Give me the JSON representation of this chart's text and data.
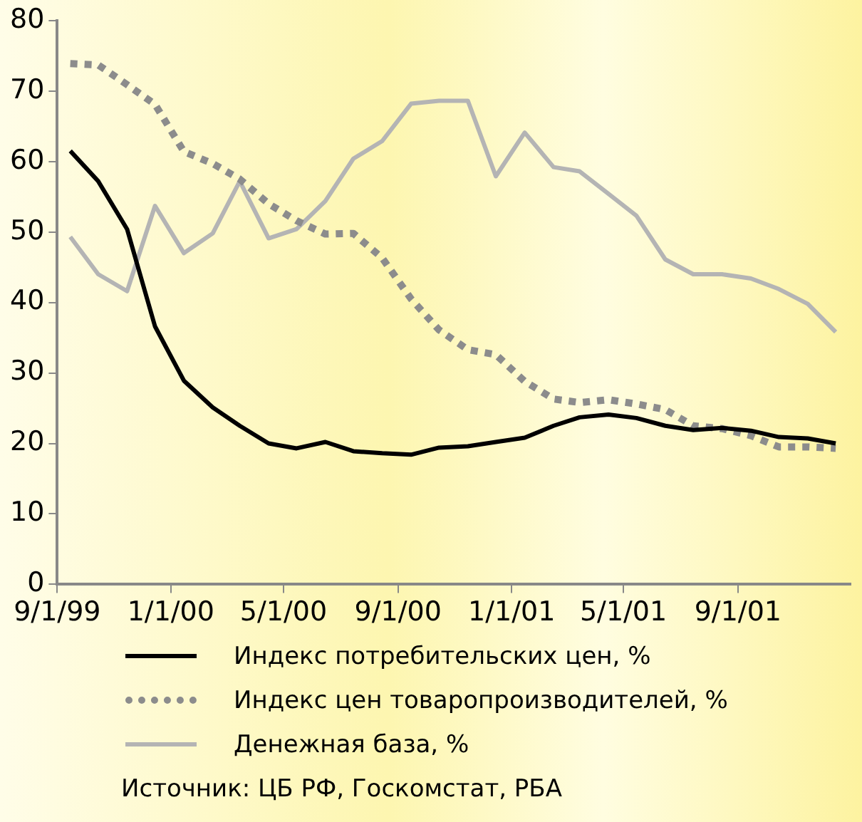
{
  "chart_data": {
    "type": "line",
    "x": [
      "1999-09-15",
      "1999-10-15",
      "1999-11-15",
      "1999-12-15",
      "2000-01-15",
      "2000-02-15",
      "2000-03-15",
      "2000-04-15",
      "2000-05-15",
      "2000-06-15",
      "2000-07-15",
      "2000-08-15",
      "2000-09-15",
      "2000-10-15",
      "2000-11-15",
      "2000-12-15",
      "2001-01-15",
      "2001-02-15",
      "2001-03-15",
      "2001-04-15",
      "2001-05-15",
      "2001-06-15",
      "2001-07-15",
      "2001-08-15",
      "2001-09-15",
      "2001-10-15",
      "2001-11-15",
      "2001-12-15"
    ],
    "series": [
      {
        "name": "Индекс потребительских цен, %",
        "color": "#000000",
        "line_style": "solid",
        "values": [
          61.5,
          57.2,
          50.4,
          36.6,
          28.9,
          25.1,
          22.5,
          20.0,
          19.3,
          20.2,
          18.9,
          18.6,
          18.4,
          19.4,
          19.6,
          20.2,
          20.8,
          22.5,
          23.7,
          24.1,
          23.6,
          22.5,
          21.9,
          22.2,
          21.8,
          20.9,
          20.7,
          20.0
        ]
      },
      {
        "name": "Индекс цен товаропроизводителей, %",
        "color": "#8c8c8c",
        "line_style": "dotted",
        "values": [
          73.9,
          73.7,
          70.9,
          68.1,
          61.4,
          59.7,
          57.5,
          54.0,
          51.6,
          49.7,
          49.8,
          46.3,
          40.5,
          36.1,
          33.3,
          32.6,
          28.8,
          26.3,
          25.8,
          26.2,
          25.6,
          24.8,
          22.5,
          22.1,
          21.1,
          19.5,
          19.5,
          19.3
        ]
      },
      {
        "name": "Денежная база, %",
        "color": "#b4b4b4",
        "line_style": "solid",
        "values": [
          49.3,
          44.0,
          41.6,
          53.7,
          47.0,
          49.8,
          57.2,
          49.1,
          50.4,
          54.4,
          60.4,
          62.9,
          68.2,
          68.6,
          68.6,
          57.9,
          64.1,
          59.2,
          58.6,
          55.4,
          52.3,
          46.1,
          44.0,
          44.0,
          43.4,
          41.9,
          39.8,
          35.8
        ]
      }
    ],
    "xlim": [
      "1999-09-01",
      "2001-12-31"
    ],
    "xticks": [
      {
        "value": "1999-09-01",
        "label": "9/1/99"
      },
      {
        "value": "2000-01-01",
        "label": "1/1/00"
      },
      {
        "value": "2000-05-01",
        "label": "5/1/00"
      },
      {
        "value": "2000-09-01",
        "label": "9/1/00"
      },
      {
        "value": "2001-01-01",
        "label": "1/1/01"
      },
      {
        "value": "2001-05-01",
        "label": "5/1/01"
      },
      {
        "value": "2001-09-01",
        "label": "9/1/01"
      }
    ],
    "ylim": [
      0,
      80
    ],
    "yticks": [
      0,
      10,
      20,
      30,
      40,
      50,
      60,
      70,
      80
    ],
    "grid": false,
    "legend": "bottom",
    "marker": "none",
    "annotations": [
      "Источник: ЦБ РФ, Госкомстат, РБА"
    ]
  }
}
